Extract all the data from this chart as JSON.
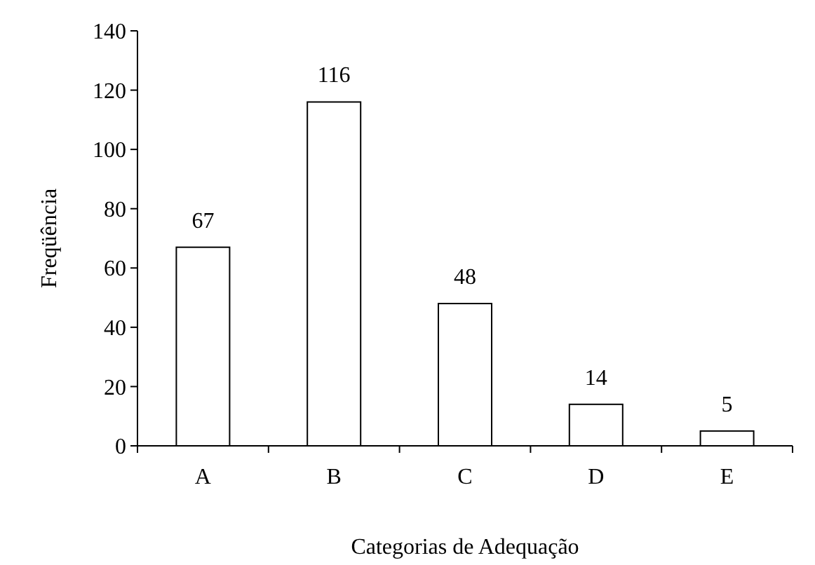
{
  "chart_data": {
    "type": "bar",
    "xlabel": "Categorias de Adequação",
    "ylabel": "Freqüência",
    "categories": [
      "A",
      "B",
      "C",
      "D",
      "E"
    ],
    "values": [
      67,
      116,
      48,
      14,
      5
    ],
    "color": "#ffffff",
    "ylim": [
      0,
      140
    ],
    "yticks": [
      0,
      20,
      40,
      60,
      80,
      100,
      120,
      140
    ],
    "data_labels": true,
    "grid": false
  }
}
